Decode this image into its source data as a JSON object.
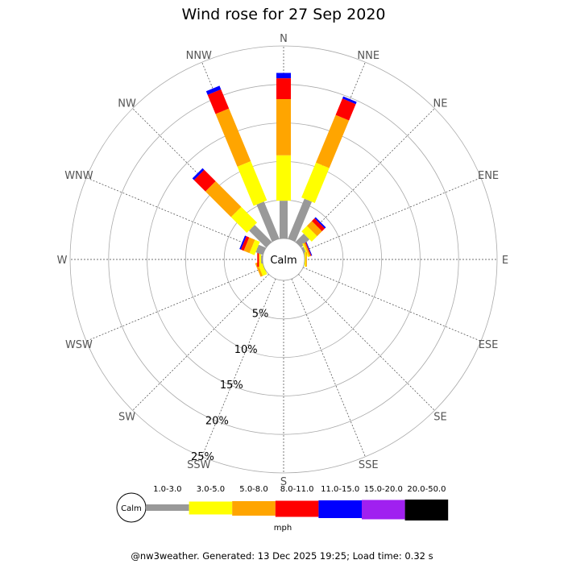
{
  "chart_data": {
    "type": "wind-rose",
    "title": "Wind rose for 27 Sep 2020",
    "calm_label": "Calm",
    "directions": [
      "N",
      "NNE",
      "NE",
      "ENE",
      "E",
      "ESE",
      "SE",
      "SSE",
      "S",
      "SSW",
      "SW",
      "WSW",
      "W",
      "WNW",
      "NW",
      "NNW"
    ],
    "radial_ticks": [
      5,
      10,
      15,
      20,
      25
    ],
    "radial_tick_labels": [
      "5%",
      "10%",
      "15%",
      "20%",
      "25%"
    ],
    "rmax": 25,
    "unit": "mph",
    "bins": [
      {
        "label": "1.0-3.0",
        "color": "#999999"
      },
      {
        "label": "3.0-5.0",
        "color": "#ffff00"
      },
      {
        "label": "5.0-8.0",
        "color": "#ffa500"
      },
      {
        "label": "8.0-11.0",
        "color": "#ff0000"
      },
      {
        "label": "11.0-15.0",
        "color": "#0000ff"
      },
      {
        "label": "15.0-20.0",
        "color": "#a020f0"
      },
      {
        "label": "20.0-50.0",
        "color": "#000000"
      }
    ],
    "cumulative_percent_by_direction": {
      "N": [
        4.9,
        10.8,
        18.1,
        20.8,
        21.5,
        21.5,
        21.5
      ],
      "NNE": [
        5.6,
        10.5,
        17.2,
        19.5,
        19.8,
        19.8,
        19.8
      ],
      "NE": [
        1.5,
        2.5,
        3.4,
        3.9,
        4.1,
        4.1,
        4.1
      ],
      "ENE": [
        0.3,
        0.5,
        0.7,
        0.8,
        0.9,
        0.9,
        0.9
      ],
      "E": [
        0.0,
        0.15,
        0.3,
        0.3,
        0.3,
        0.3,
        0.3
      ],
      "ESE": [
        0,
        0,
        0,
        0,
        0,
        0,
        0
      ],
      "SE": [
        0,
        0,
        0,
        0,
        0,
        0,
        0
      ],
      "SSE": [
        0,
        0,
        0,
        0,
        0,
        0,
        0
      ],
      "S": [
        0,
        0,
        0,
        0,
        0,
        0,
        0
      ],
      "SSW": [
        0,
        0,
        0,
        0,
        0,
        0,
        0
      ],
      "SW": [
        0,
        0,
        0,
        0,
        0,
        0,
        0
      ],
      "WSW": [
        0.0,
        0.6,
        0.9,
        0.9,
        0.9,
        0.9,
        0.9
      ],
      "W": [
        0.2,
        0.4,
        0.5,
        0.7,
        0.7,
        0.7,
        0.7
      ],
      "WNW": [
        1.0,
        1.7,
        2.5,
        2.9,
        3.1,
        3.1,
        3.1
      ],
      "NW": [
        3.1,
        6.0,
        10.7,
        12.8,
        13.1,
        13.1,
        13.1
      ],
      "NNW": [
        5.2,
        10.7,
        18.1,
        20.8,
        21.3,
        21.3,
        21.3
      ]
    }
  },
  "footer": "@nw3weather. Generated: 13 Dec 2025 19:25; Load time: 0.32 s"
}
